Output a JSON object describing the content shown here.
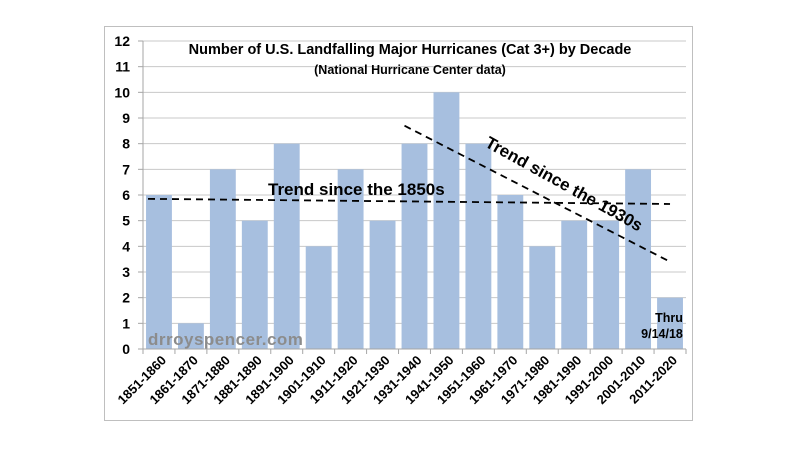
{
  "chart_data": {
    "type": "bar",
    "title": "Number of U.S. Landfalling Major Hurricanes (Cat 3+) by Decade",
    "subtitle": "(National Hurricane Center data)",
    "xlabel": "",
    "ylabel": "",
    "ylim": [
      0,
      12
    ],
    "yticks": [
      "0",
      "1",
      "2",
      "3",
      "4",
      "5",
      "6",
      "7",
      "8",
      "9",
      "10",
      "11",
      "12"
    ],
    "grid": true,
    "categories": [
      "1851-1860",
      "1861-1870",
      "1871-1880",
      "1881-1890",
      "1891-1900",
      "1901-1910",
      "1911-1920",
      "1921-1930",
      "1931-1940",
      "1941-1950",
      "1951-1960",
      "1961-1970",
      "1971-1980",
      "1981-1990",
      "1991-2000",
      "2001-2010",
      "2011-2020"
    ],
    "values": [
      6,
      1,
      7,
      5,
      8,
      4,
      7,
      5,
      8,
      10,
      8,
      6,
      4,
      5,
      5,
      7,
      2
    ],
    "bar_color": "#a7bfdf",
    "trend_lines": [
      {
        "name": "trend-1850s",
        "label": "Trend since the 1850s",
        "start": {
          "category_index": 0,
          "value": 5.85
        },
        "end": {
          "category_index": 16,
          "value": 5.65
        }
      },
      {
        "name": "trend-1930s",
        "label": "Trend since the 1930s",
        "start": {
          "category_index": 8,
          "value": 8.7
        },
        "end": {
          "category_index": 16,
          "value": 3.4
        }
      }
    ],
    "annotations": {
      "watermark": "drroyspencer.com",
      "note_line1": "Thru",
      "note_line2": "9/14/18"
    }
  }
}
